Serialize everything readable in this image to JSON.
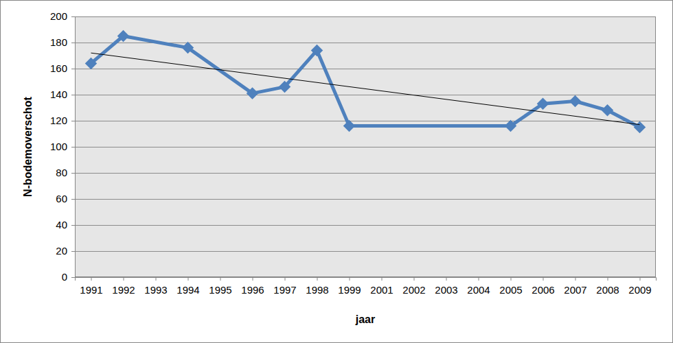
{
  "chart_data": {
    "type": "line",
    "x_label": "jaar",
    "y_label": "N-bodemoverschot",
    "categories": [
      "1991",
      "1992",
      "1993",
      "1994",
      "1995",
      "1996",
      "1997",
      "1998",
      "1999",
      "2001",
      "2002",
      "2003",
      "2004",
      "2005",
      "2006",
      "2007",
      "2008",
      "2009"
    ],
    "series": [
      {
        "color": "#4f81bd",
        "marker": "diamond",
        "line_style": "solid",
        "values": [
          164,
          185,
          null,
          176,
          null,
          141,
          146,
          174,
          116,
          null,
          null,
          null,
          null,
          116,
          133,
          135,
          128,
          115
        ]
      },
      {
        "color": "#000000",
        "marker": "none",
        "line_style": "solid",
        "values": [
          172,
          null,
          null,
          null,
          null,
          null,
          null,
          null,
          null,
          null,
          null,
          null,
          null,
          null,
          null,
          null,
          null,
          117
        ]
      }
    ],
    "ylim": [
      0,
      200
    ],
    "yticks": [
      0,
      20,
      40,
      60,
      80,
      100,
      120,
      140,
      160,
      180,
      200
    ],
    "grid": true
  }
}
